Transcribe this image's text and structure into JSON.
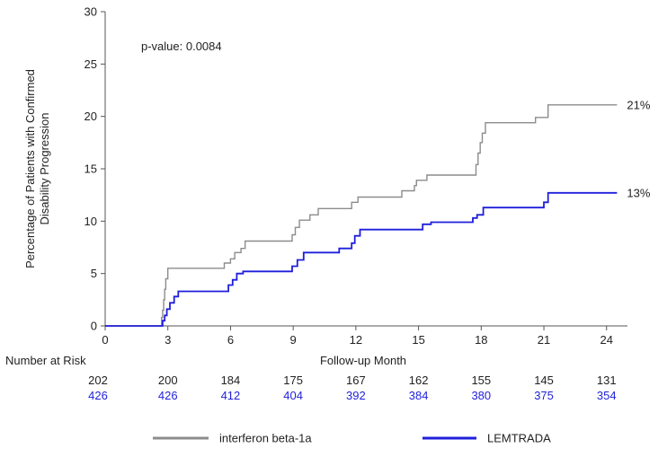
{
  "chart_data": {
    "type": "line",
    "step": true,
    "xlabel": "Follow-up Month",
    "ylabel_lines": [
      "Percentage of Patients with Confirmed",
      "Disability Progression"
    ],
    "xlim": [
      0,
      25
    ],
    "ylim": [
      0,
      30
    ],
    "xticks": [
      0,
      3,
      6,
      9,
      12,
      15,
      18,
      21,
      24
    ],
    "yticks": [
      0,
      5,
      10,
      15,
      20,
      25,
      30
    ],
    "grid": false,
    "legend_position": "bottom",
    "pvalue_text": "p-value: 0.0084",
    "series": [
      {
        "name": "interferon beta-1a",
        "color": "#8c8c8c",
        "end_label": "21%",
        "points": [
          [
            0,
            0
          ],
          [
            2.6,
            0
          ],
          [
            2.7,
            0.8
          ],
          [
            2.75,
            1.5
          ],
          [
            2.8,
            2.5
          ],
          [
            2.85,
            3.5
          ],
          [
            2.9,
            4.5
          ],
          [
            3.0,
            5.5
          ],
          [
            5.6,
            5.5
          ],
          [
            5.7,
            6.0
          ],
          [
            6.0,
            6.4
          ],
          [
            6.2,
            7.0
          ],
          [
            6.5,
            7.4
          ],
          [
            6.7,
            8.1
          ],
          [
            8.8,
            8.1
          ],
          [
            8.95,
            8.7
          ],
          [
            9.1,
            9.4
          ],
          [
            9.3,
            10.1
          ],
          [
            9.8,
            10.6
          ],
          [
            10.2,
            11.2
          ],
          [
            11.8,
            11.8
          ],
          [
            12.1,
            12.3
          ],
          [
            14.2,
            12.9
          ],
          [
            14.8,
            13.4
          ],
          [
            14.9,
            13.9
          ],
          [
            15.4,
            14.4
          ],
          [
            17.6,
            14.4
          ],
          [
            17.75,
            15.4
          ],
          [
            17.85,
            16.5
          ],
          [
            17.95,
            17.5
          ],
          [
            18.05,
            18.4
          ],
          [
            18.2,
            19.4
          ],
          [
            20.6,
            19.9
          ],
          [
            21.2,
            21.1
          ],
          [
            24.5,
            21.1
          ]
        ]
      },
      {
        "name": "LEMTRADA",
        "color": "#1f1fdc",
        "end_label": "13%",
        "points": [
          [
            0,
            0
          ],
          [
            2.65,
            0
          ],
          [
            2.75,
            0.5
          ],
          [
            2.85,
            1.0
          ],
          [
            2.95,
            1.6
          ],
          [
            3.1,
            2.2
          ],
          [
            3.3,
            2.8
          ],
          [
            3.5,
            3.3
          ],
          [
            5.8,
            3.3
          ],
          [
            5.9,
            3.9
          ],
          [
            6.1,
            4.4
          ],
          [
            6.3,
            5.0
          ],
          [
            6.6,
            5.2
          ],
          [
            8.8,
            5.2
          ],
          [
            8.95,
            5.7
          ],
          [
            9.2,
            6.3
          ],
          [
            9.5,
            7.0
          ],
          [
            11.0,
            7.0
          ],
          [
            11.2,
            7.4
          ],
          [
            11.8,
            7.9
          ],
          [
            11.95,
            8.6
          ],
          [
            12.2,
            9.2
          ],
          [
            15.2,
            9.7
          ],
          [
            15.6,
            9.9
          ],
          [
            17.4,
            9.9
          ],
          [
            17.6,
            10.3
          ],
          [
            17.8,
            10.6
          ],
          [
            18.1,
            11.3
          ],
          [
            20.8,
            11.3
          ],
          [
            21.0,
            11.8
          ],
          [
            21.2,
            12.7
          ],
          [
            24.5,
            12.7
          ]
        ]
      }
    ],
    "risk_table": {
      "title": "Number at Risk",
      "timepoints": [
        0,
        3,
        6,
        9,
        12,
        15,
        18,
        21,
        24
      ],
      "rows": [
        {
          "name": "interferon beta-1a",
          "color": "#222222",
          "values": [
            "202",
            "200",
            "184",
            "175",
            "167",
            "162",
            "155",
            "145",
            "131"
          ]
        },
        {
          "name": "LEMTRADA",
          "color": "#1f1fdc",
          "values": [
            "426",
            "426",
            "412",
            "404",
            "392",
            "384",
            "380",
            "375",
            "354"
          ]
        }
      ]
    }
  }
}
